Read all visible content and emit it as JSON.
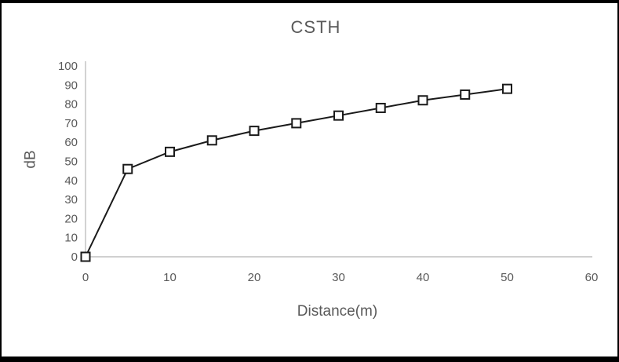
{
  "figure": {
    "frame_color": "#000000",
    "background_color": "#ffffff"
  },
  "chart_data": {
    "type": "line",
    "title": "CSTH",
    "xlabel": "Distance(m)",
    "ylabel": "dB",
    "x": [
      0,
      5,
      10,
      15,
      20,
      25,
      30,
      35,
      40,
      45,
      50
    ],
    "series": [
      {
        "name": "CSTH",
        "values": [
          0,
          46,
          55,
          61,
          66,
          70,
          74,
          78,
          82,
          85,
          88
        ]
      }
    ],
    "xlim": [
      0,
      60
    ],
    "ylim": [
      0,
      100
    ],
    "x_ticks": [
      0,
      10,
      20,
      30,
      40,
      50,
      60
    ],
    "y_ticks": [
      0,
      10,
      20,
      30,
      40,
      50,
      60,
      70,
      80,
      90,
      100
    ],
    "grid": false,
    "legend": "none",
    "marker": "open-square",
    "line_color": "#1a1a1a",
    "marker_fill": "#ffffff",
    "axis_color": "#c0c0c0",
    "text_color": "#595959"
  }
}
